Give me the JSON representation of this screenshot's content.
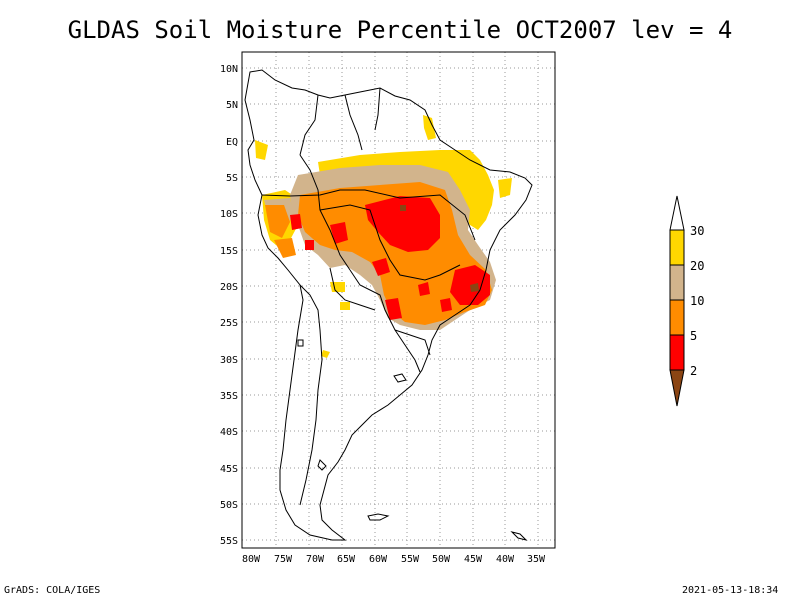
{
  "title": "GLDAS Soil Moisture Percentile OCT2007 lev = 4",
  "footer": {
    "left": "GrADS: COLA/IGES",
    "right": "2021-05-13-18:34"
  },
  "map": {
    "lat_labels": [
      "10N",
      "5N",
      "EQ",
      "5S",
      "10S",
      "15S",
      "20S",
      "25S",
      "30S",
      "35S",
      "40S",
      "45S",
      "50S",
      "55S"
    ],
    "lon_labels": [
      "80W",
      "75W",
      "70W",
      "65W",
      "60W",
      "55W",
      "50W",
      "45W",
      "40W",
      "35W"
    ],
    "lon_range": [
      -81,
      -33
    ],
    "lat_range": [
      -56,
      12
    ]
  },
  "legend": {
    "labels": [
      "2",
      "5",
      "10",
      "20",
      "30"
    ],
    "colors": {
      "below_2": "#8b4513",
      "2_5": "#ff0000",
      "5_10": "#ff8c00",
      "10_20": "#d2b48c",
      "20_30": "#ffd700",
      "above_30": "#ffffff"
    }
  }
}
